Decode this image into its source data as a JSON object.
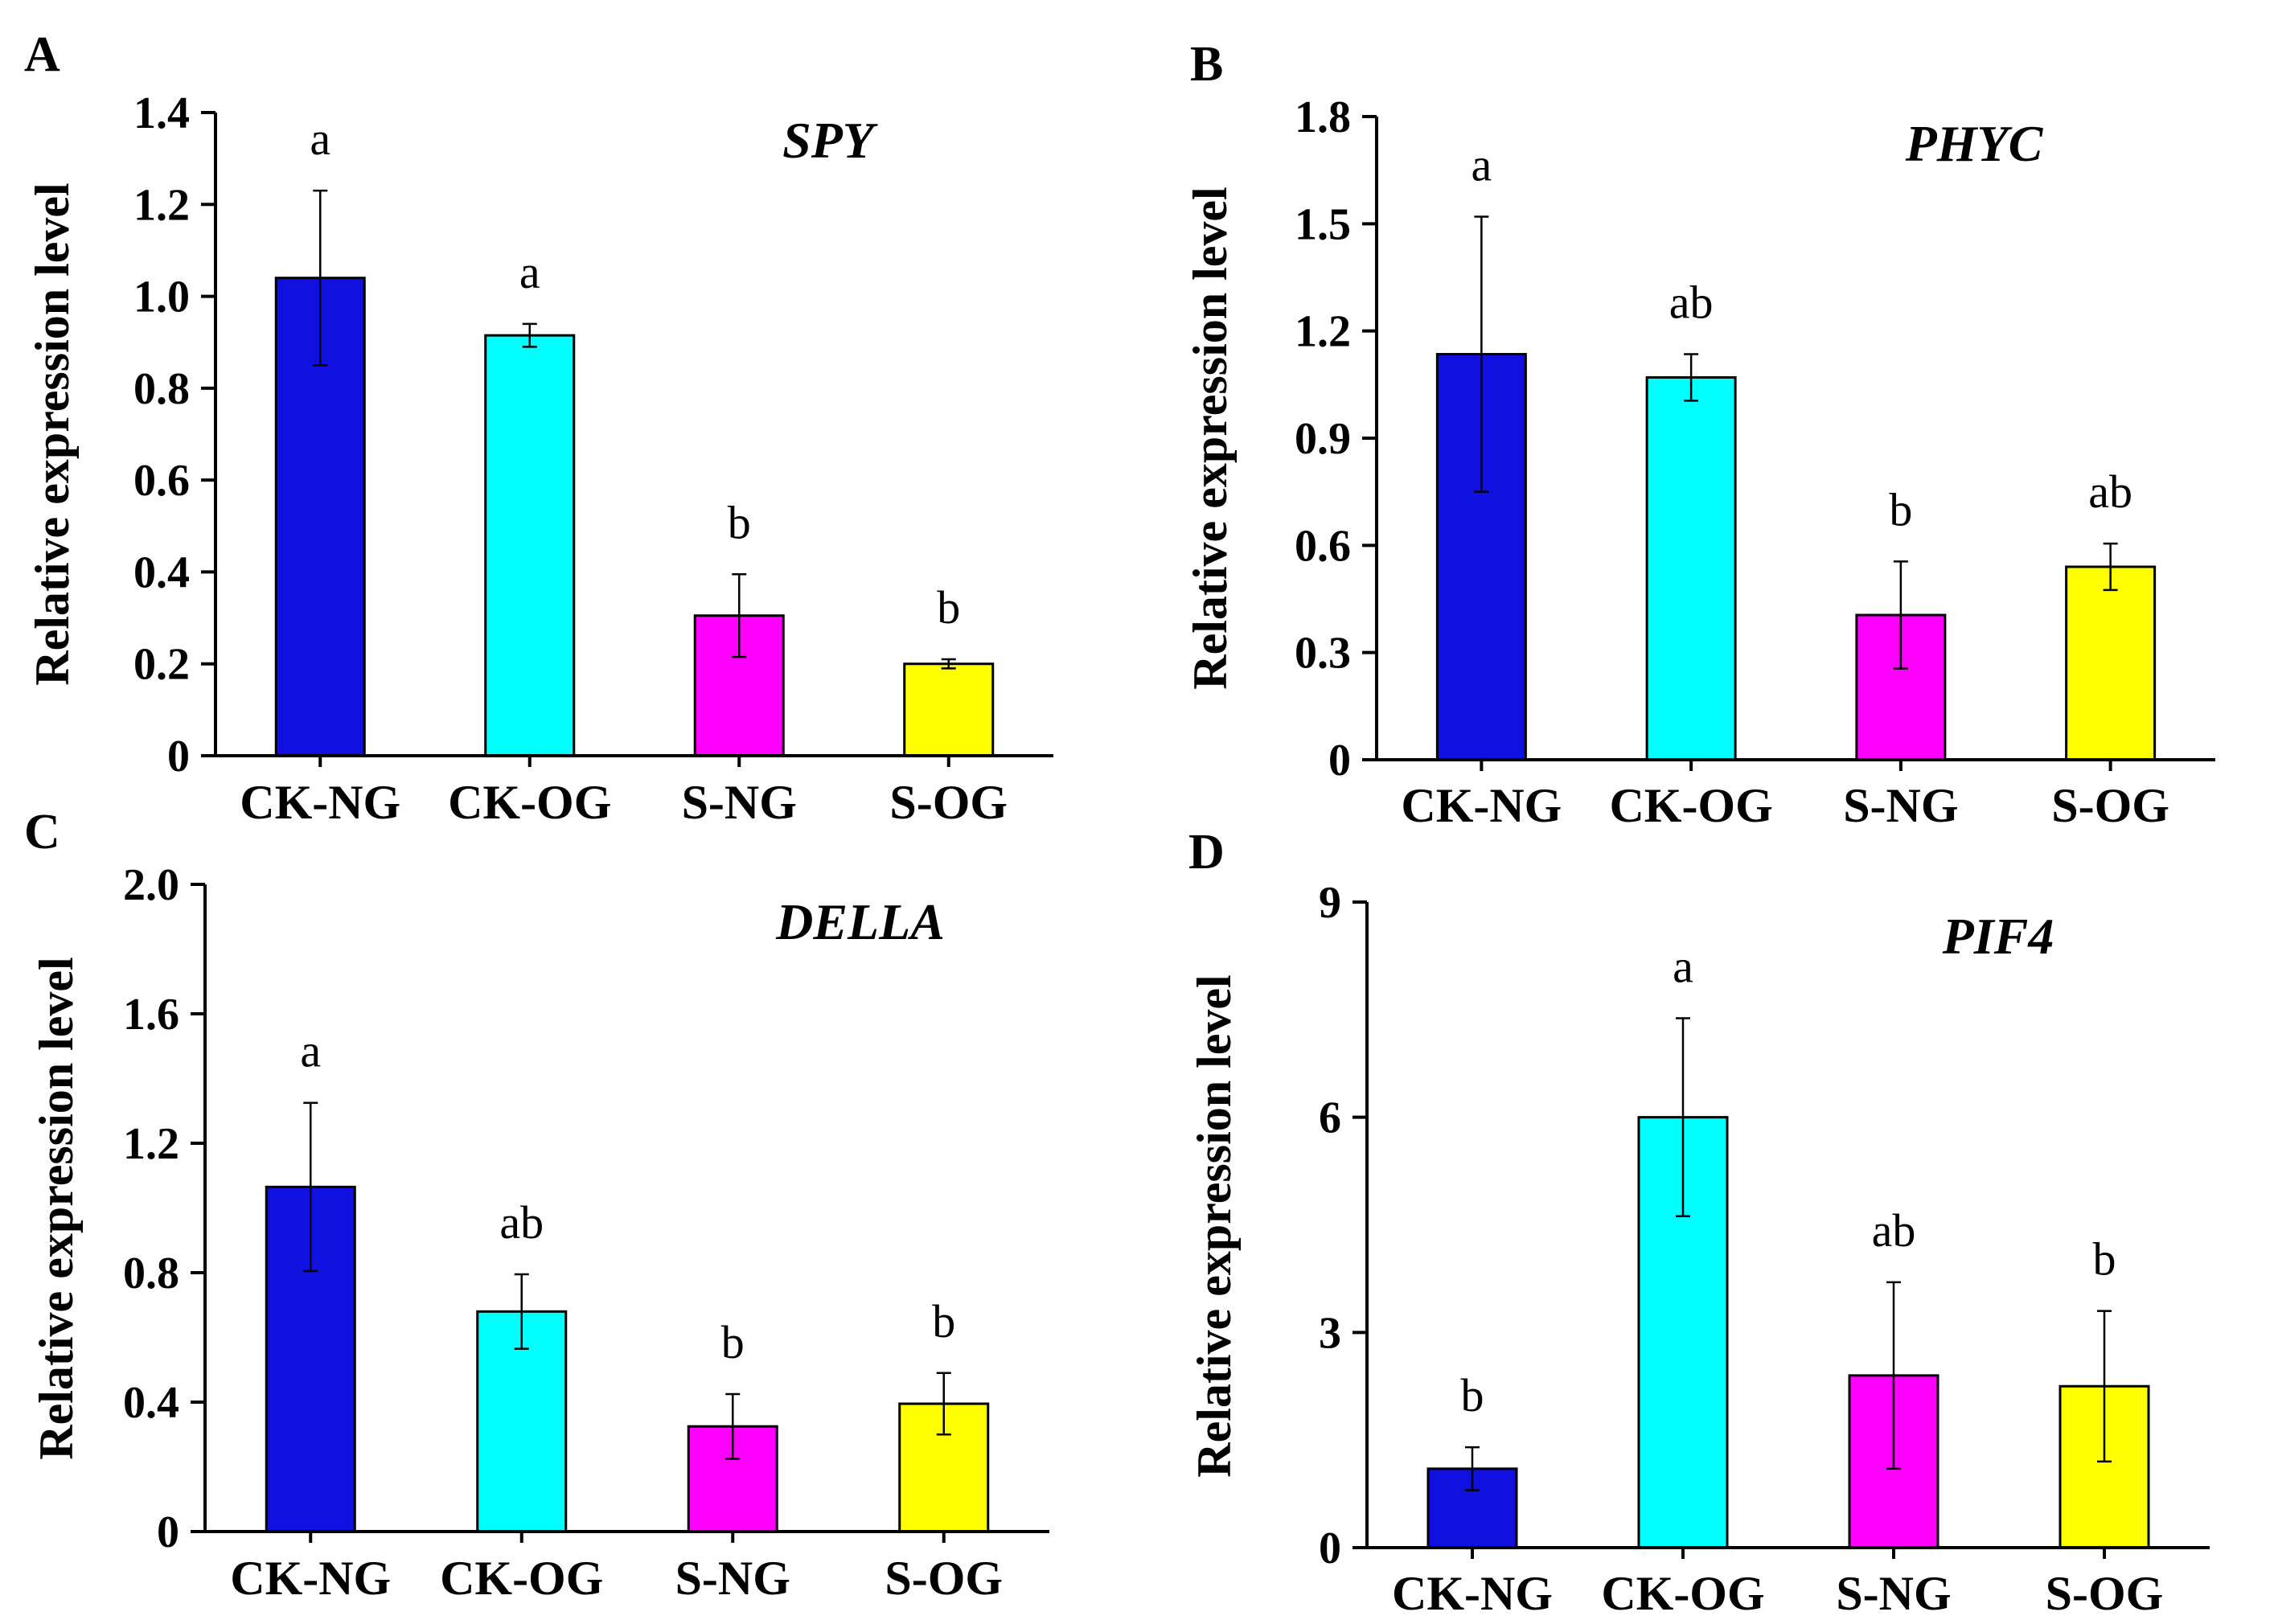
{
  "chart_data": [
    {
      "id": "A",
      "type": "bar",
      "panel_label": "A",
      "title": "SPY",
      "ylabel": "Relative expression level",
      "ylim": [
        0,
        1.4
      ],
      "yticks": [
        0,
        0.2,
        0.4,
        0.6,
        0.8,
        1.0,
        1.2,
        1.4
      ],
      "ytick_labels": [
        "0",
        "0.2",
        "0.4",
        "0.6",
        "0.8",
        "1.0",
        "1.2",
        "1.4"
      ],
      "categories": [
        "CK-NG",
        "CK-OG",
        "S-NG",
        "S-OG"
      ],
      "values": [
        1.04,
        0.915,
        0.305,
        0.2
      ],
      "errors": [
        0.19,
        0.025,
        0.09,
        0.01
      ],
      "significance": [
        "a",
        "a",
        "b",
        "b"
      ]
    },
    {
      "id": "B",
      "type": "bar",
      "panel_label": "B",
      "title": "PHYC",
      "ylabel": "Relative expression level",
      "ylim": [
        0,
        1.8
      ],
      "yticks": [
        0,
        0.3,
        0.6,
        0.9,
        1.2,
        1.5,
        1.8
      ],
      "ytick_labels": [
        "0",
        "0.3",
        "0.6",
        "0.9",
        "1.2",
        "1.5",
        "1.8"
      ],
      "categories": [
        "CK-NG",
        "CK-OG",
        "S-NG",
        "S-OG"
      ],
      "values": [
        1.135,
        1.07,
        0.405,
        0.54
      ],
      "errors": [
        0.385,
        0.065,
        0.15,
        0.065
      ],
      "significance": [
        "a",
        "ab",
        "b",
        "ab"
      ]
    },
    {
      "id": "C",
      "type": "bar",
      "panel_label": "C",
      "title": "DELLA",
      "ylabel": "Relative expression level",
      "ylim": [
        0,
        2.0
      ],
      "yticks": [
        0,
        0.4,
        0.8,
        1.2,
        1.6,
        2.0
      ],
      "ytick_labels": [
        "0",
        "0.4",
        "0.8",
        "1.2",
        "1.6",
        "2.0"
      ],
      "categories": [
        "CK-NG",
        "CK-OG",
        "S-NG",
        "S-OG"
      ],
      "values": [
        1.065,
        0.68,
        0.325,
        0.395
      ],
      "errors": [
        0.26,
        0.115,
        0.1,
        0.095
      ],
      "significance": [
        "a",
        "ab",
        "b",
        "b"
      ]
    },
    {
      "id": "D",
      "type": "bar",
      "panel_label": "D",
      "title": "PIF4",
      "ylabel": "Relative expression level",
      "ylim": [
        0,
        9
      ],
      "yticks": [
        0,
        3,
        6,
        9
      ],
      "ytick_labels": [
        "0",
        "3",
        "6",
        "9"
      ],
      "categories": [
        "CK-NG",
        "CK-OG",
        "S-NG",
        "S-OG"
      ],
      "values": [
        1.1,
        6.0,
        2.4,
        2.25
      ],
      "errors": [
        0.3,
        1.38,
        1.3,
        1.05
      ],
      "significance": [
        "b",
        "a",
        "ab",
        "b"
      ]
    }
  ],
  "colors": {
    "CK-NG": "#1010e0",
    "CK-OG": "#00ffff",
    "S-NG": "#ff00ff",
    "S-OG": "#ffff00"
  }
}
